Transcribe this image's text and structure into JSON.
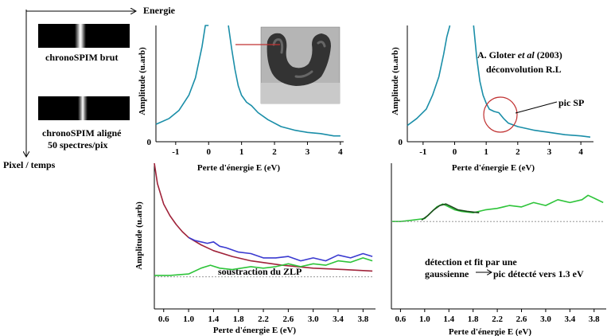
{
  "axes_labels": {
    "energy": "Energie",
    "pixel_time": "Pixel  / temps"
  },
  "strips": {
    "raw_label": "chronoSPIM brut",
    "aligned_label_line1": "chronoSPIM aligné",
    "aligned_label_line2": "50 spectres/pix"
  },
  "annotations": {
    "reference_author": "A. Gloter",
    "reference_etal": "et al",
    "reference_year": "(2003)",
    "deconvolution": "déconvolution R.L",
    "sp_peak": "pic SP",
    "zlp_subtraction": "soustraction du ZLP",
    "detection_line1": "détection et fit par une",
    "detection_line2": "gaussienne",
    "detection_result": "pic détecté vers 1.3 eV"
  },
  "colors": {
    "spectrum": "#1a8ea8",
    "fit": "#a0233a",
    "raw": "#3a3ad0",
    "residual": "#2ec43a",
    "gaussian": "#1a4a1a",
    "baseline": "#888888",
    "marker": "#c03030"
  },
  "chart_data": [
    {
      "type": "line",
      "id": "top-left",
      "xlabel": "Perte d'énergie E (eV)",
      "ylabel": "Amplitude (u.arb)",
      "xlim": [
        -1.6,
        4.1
      ],
      "ylim": [
        0,
        10
      ],
      "xticks": [
        "-1",
        "0",
        "1",
        "2",
        "3",
        "4"
      ],
      "xtick_values": [
        -1,
        0,
        1,
        2,
        3,
        4
      ],
      "yticks": [
        "0"
      ],
      "series": [
        {
          "color_key": "spectrum",
          "x": [
            -1.6,
            -1.2,
            -0.9,
            -0.6,
            -0.4,
            -0.2,
            -0.1,
            0.0
          ],
          "y": [
            1.5,
            2.0,
            2.7,
            4.0,
            5.5,
            8.2,
            10.0,
            10.0
          ]
        },
        {
          "color_key": "spectrum",
          "x": [
            0.6,
            0.7,
            0.8,
            0.9,
            1.0,
            1.15,
            1.3,
            1.5,
            1.8,
            2.2,
            2.6,
            3.0,
            3.4,
            3.8,
            4.0
          ],
          "y": [
            10.0,
            8.0,
            6.2,
            4.8,
            4.0,
            3.4,
            3.1,
            2.5,
            1.9,
            1.3,
            1.0,
            0.8,
            0.7,
            0.5,
            0.5
          ]
        }
      ]
    },
    {
      "type": "line",
      "id": "top-right",
      "xlabel": "Perte d'énergie E (eV)",
      "ylabel": "Amplitude (u.arb)",
      "xlim": [
        -1.5,
        4.4
      ],
      "ylim": [
        0,
        10
      ],
      "xticks": [
        "-1",
        "0",
        "1",
        "2",
        "3",
        "4"
      ],
      "xtick_values": [
        -1,
        0,
        1,
        2,
        3,
        4
      ],
      "yticks": [
        "0"
      ],
      "series": [
        {
          "color_key": "spectrum",
          "x": [
            -1.5,
            -1.2,
            -0.9,
            -0.7,
            -0.5,
            -0.35,
            -0.25,
            -0.15
          ],
          "y": [
            1.4,
            2.0,
            2.8,
            4.0,
            5.6,
            7.5,
            9.0,
            10.0
          ]
        },
        {
          "color_key": "spectrum",
          "x": [
            0.6,
            0.7,
            0.8,
            0.9,
            1.0,
            1.1,
            1.25,
            1.4,
            1.55,
            1.7,
            2.0,
            2.5,
            3.0,
            3.5,
            4.0,
            4.3
          ],
          "y": [
            10.0,
            7.2,
            5.2,
            4.0,
            3.3,
            2.8,
            2.6,
            2.5,
            2.0,
            1.6,
            1.3,
            1.0,
            0.8,
            0.6,
            0.5,
            0.4
          ]
        }
      ]
    },
    {
      "type": "line",
      "id": "bottom-left",
      "xlabel": "Perte d'énergie E (eV)",
      "ylabel": "Amplitude (u.arb)",
      "xlim": [
        0.45,
        4.0
      ],
      "ylim": [
        0,
        10
      ],
      "xticks": [
        "0.6",
        "1.0",
        "1.4",
        "1.8",
        "2.2",
        "2.6",
        "3.0",
        "3.4",
        "3.8"
      ],
      "xtick_values": [
        0.6,
        1.0,
        1.4,
        1.8,
        2.2,
        2.6,
        3.0,
        3.4,
        3.8
      ],
      "series": [
        {
          "color_key": "fit",
          "x": [
            0.45,
            0.5,
            0.6,
            0.7,
            0.8,
            0.9,
            1.0,
            1.2,
            1.4,
            1.7,
            2.0,
            2.5,
            3.0,
            3.5,
            3.95
          ],
          "y": [
            10.0,
            8.6,
            7.2,
            6.4,
            5.8,
            5.3,
            4.9,
            4.4,
            4.0,
            3.6,
            3.3,
            3.0,
            2.8,
            2.7,
            2.6
          ]
        },
        {
          "color_key": "raw",
          "x": [
            1.0,
            1.1,
            1.2,
            1.3,
            1.4,
            1.5,
            1.6,
            1.8,
            2.0,
            2.2,
            2.4,
            2.6,
            2.8,
            3.0,
            3.2,
            3.4,
            3.6,
            3.8,
            3.95
          ],
          "y": [
            4.9,
            4.7,
            4.6,
            4.5,
            4.6,
            4.3,
            4.2,
            3.9,
            3.8,
            3.5,
            3.5,
            3.6,
            3.3,
            3.5,
            3.3,
            3.7,
            3.5,
            3.8,
            3.6
          ]
        },
        {
          "color_key": "residual",
          "x": [
            0.45,
            0.7,
            1.0,
            1.2,
            1.35,
            1.5,
            1.7,
            2.0,
            2.2,
            2.4,
            2.6,
            2.8,
            3.0,
            3.2,
            3.4,
            3.6,
            3.8,
            3.95
          ],
          "y": [
            2.3,
            2.3,
            2.4,
            2.8,
            3.0,
            2.8,
            2.7,
            2.9,
            2.8,
            2.9,
            3.1,
            2.9,
            3.1,
            3.0,
            3.3,
            3.2,
            3.5,
            3.3
          ]
        },
        {
          "color_key": "baseline",
          "dashed": true,
          "x": [
            0.45,
            3.95
          ],
          "y": [
            2.2,
            2.2
          ]
        }
      ]
    },
    {
      "type": "line",
      "id": "bottom-right",
      "xlabel": "Perte d'énergie E (eV)",
      "xlim": [
        0.45,
        4.0
      ],
      "ylim": [
        0,
        10
      ],
      "xticks": [
        "0.6",
        "1.0",
        "1.4",
        "1.8",
        "2.2",
        "2.6",
        "3.0",
        "3.4",
        "3.8"
      ],
      "xtick_values": [
        0.6,
        1.0,
        1.4,
        1.8,
        2.2,
        2.6,
        3.0,
        3.4,
        3.8
      ],
      "series": [
        {
          "color_key": "residual",
          "x": [
            0.45,
            0.6,
            0.8,
            1.0,
            1.1,
            1.2,
            1.3,
            1.4,
            1.5,
            1.6,
            1.8,
            2.0,
            2.2,
            2.4,
            2.6,
            2.8,
            3.0,
            3.2,
            3.4,
            3.6,
            3.7,
            3.8,
            3.95
          ],
          "y": [
            6.0,
            6.0,
            6.1,
            6.2,
            6.6,
            7.0,
            7.2,
            7.0,
            6.8,
            6.7,
            6.6,
            6.8,
            6.9,
            7.1,
            7.0,
            7.3,
            7.1,
            7.5,
            7.3,
            7.5,
            7.8,
            7.6,
            7.3
          ]
        },
        {
          "color_key": "gaussian",
          "x": [
            0.95,
            1.05,
            1.15,
            1.25,
            1.35,
            1.45,
            1.55,
            1.7,
            1.9
          ],
          "y": [
            6.1,
            6.4,
            6.8,
            7.1,
            7.2,
            7.0,
            6.8,
            6.7,
            6.6
          ]
        },
        {
          "color_key": "baseline",
          "dashed": true,
          "x": [
            0.45,
            3.95
          ],
          "y": [
            6.0,
            6.0
          ]
        }
      ]
    }
  ]
}
